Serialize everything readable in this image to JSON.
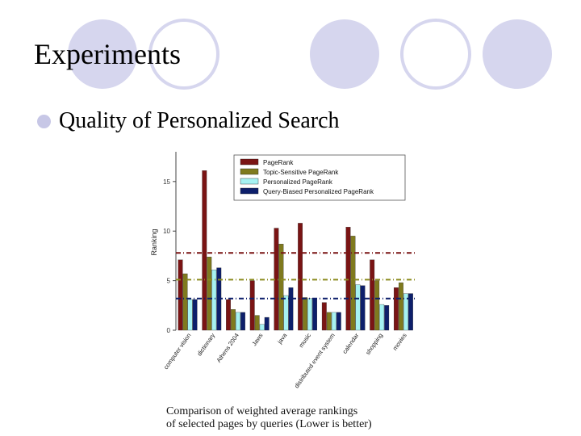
{
  "slide": {
    "title": "Experiments",
    "bullet": "Quality of Personalized Search",
    "caption_line1": "Comparison of weighted average rankings",
    "caption_line2": "of selected pages by queries (Lower is better)"
  },
  "colors": {
    "decor": "#d6d6ee",
    "bullet": "#c7c7e6"
  },
  "chart_data": {
    "type": "bar",
    "title": "",
    "xlabel": "",
    "ylabel": "Ranking",
    "ylim": [
      0,
      18
    ],
    "yticks": [
      0,
      5,
      10,
      15
    ],
    "legend_position": "top-right",
    "categories": [
      "computer vision",
      "dictionary",
      "Athens 2004",
      "Jaws",
      "java",
      "music",
      "distributed event system",
      "calendar",
      "shopping",
      "movies"
    ],
    "series": [
      {
        "name": "PageRank",
        "color": "#7a1414",
        "values": [
          7.1,
          16.1,
          3.1,
          5.0,
          10.3,
          10.8,
          2.8,
          10.4,
          7.1,
          4.3
        ]
      },
      {
        "name": "Topic-Sensitive PageRank",
        "color": "#7f7a1e",
        "values": [
          5.7,
          7.4,
          2.1,
          1.5,
          8.7,
          3.3,
          1.8,
          9.5,
          5.0,
          4.8
        ]
      },
      {
        "name": "Personalized PageRank",
        "color": "#a6f2f2",
        "values": [
          3.1,
          6.1,
          1.8,
          0.6,
          3.5,
          3.2,
          1.8,
          4.6,
          2.6,
          3.7
        ]
      },
      {
        "name": "Query-Biased Personalized PageRank",
        "color": "#0d1f6b",
        "values": [
          3.1,
          6.3,
          1.8,
          1.3,
          4.3,
          3.2,
          1.8,
          4.5,
          2.5,
          3.7
        ]
      }
    ],
    "reference_lines": [
      {
        "value": 7.8,
        "color": "#7a1414"
      },
      {
        "value": 5.1,
        "color": "#8a8a1e"
      },
      {
        "value": 3.2,
        "color": "#0d1f6b"
      }
    ]
  }
}
